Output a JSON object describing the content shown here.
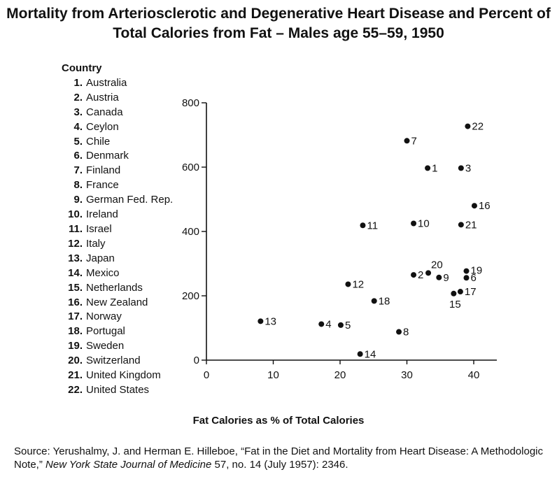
{
  "chart_data": {
    "type": "scatter",
    "title": "Mortality from Arteriosclerotic and Degenerative Heart Disease and Percent of Total Calories from Fat – Males age 55–59, 1950",
    "xlabel": "Fat Calories as % of Total Calories",
    "ylabel": "",
    "xlim": [
      0,
      43
    ],
    "ylim": [
      0,
      800
    ],
    "x_ticks": [
      "0",
      "10",
      "20",
      "30",
      "40"
    ],
    "y_ticks": [
      "0",
      "200",
      "400",
      "600",
      "800"
    ],
    "legend_title": "Country",
    "countries": [
      {
        "num": "1.",
        "name": "Australia"
      },
      {
        "num": "2.",
        "name": "Austria"
      },
      {
        "num": "3.",
        "name": "Canada"
      },
      {
        "num": "4.",
        "name": "Ceylon"
      },
      {
        "num": "5.",
        "name": "Chile"
      },
      {
        "num": "6.",
        "name": "Denmark"
      },
      {
        "num": "7.",
        "name": "Finland"
      },
      {
        "num": "8.",
        "name": "France"
      },
      {
        "num": "9.",
        "name": "German Fed. Rep."
      },
      {
        "num": "10.",
        "name": "Ireland"
      },
      {
        "num": "11.",
        "name": "Israel"
      },
      {
        "num": "12.",
        "name": "Italy"
      },
      {
        "num": "13.",
        "name": "Japan"
      },
      {
        "num": "14.",
        "name": "Mexico"
      },
      {
        "num": "15.",
        "name": "Netherlands"
      },
      {
        "num": "16.",
        "name": "New Zealand"
      },
      {
        "num": "17.",
        "name": "Norway"
      },
      {
        "num": "18.",
        "name": "Portugal"
      },
      {
        "num": "19.",
        "name": "Sweden"
      },
      {
        "num": "20.",
        "name": "Switzerland"
      },
      {
        "num": "21.",
        "name": "United Kingdom"
      },
      {
        "num": "22.",
        "name": "United States"
      }
    ],
    "points": [
      {
        "label": "1",
        "x": 33.1,
        "y": 597
      },
      {
        "label": "2",
        "x": 31.0,
        "y": 265
      },
      {
        "label": "3",
        "x": 38.1,
        "y": 597
      },
      {
        "label": "4",
        "x": 17.2,
        "y": 112
      },
      {
        "label": "5",
        "x": 20.1,
        "y": 109
      },
      {
        "label": "6",
        "x": 38.9,
        "y": 256
      },
      {
        "label": "7",
        "x": 30.0,
        "y": 682
      },
      {
        "label": "8",
        "x": 28.8,
        "y": 88
      },
      {
        "label": "9",
        "x": 34.8,
        "y": 257
      },
      {
        "label": "10",
        "x": 31.0,
        "y": 425
      },
      {
        "label": "11",
        "x": 23.4,
        "y": 419
      },
      {
        "label": "12",
        "x": 21.2,
        "y": 236
      },
      {
        "label": "13",
        "x": 8.1,
        "y": 121
      },
      {
        "label": "14",
        "x": 23.0,
        "y": 19
      },
      {
        "label": "15",
        "x": 37.0,
        "y": 207
      },
      {
        "label": "16",
        "x": 40.1,
        "y": 480
      },
      {
        "label": "17",
        "x": 38.0,
        "y": 213
      },
      {
        "label": "18",
        "x": 25.1,
        "y": 184
      },
      {
        "label": "19",
        "x": 38.9,
        "y": 277
      },
      {
        "label": "20",
        "x": 33.2,
        "y": 271
      },
      {
        "label": "21",
        "x": 38.1,
        "y": 421
      },
      {
        "label": "22",
        "x": 39.1,
        "y": 727
      }
    ],
    "grid": false,
    "legend_placement": "left"
  },
  "source": {
    "prefix": "Source: Yerushalmy, J. and Herman E. Hilleboe, “Fat in the Diet and Mortality from Heart Disease: A Methodologic Note,” ",
    "journal": "New York State Journal of Medicine",
    "suffix": " 57, no. 14 (July 1957): 2346."
  }
}
